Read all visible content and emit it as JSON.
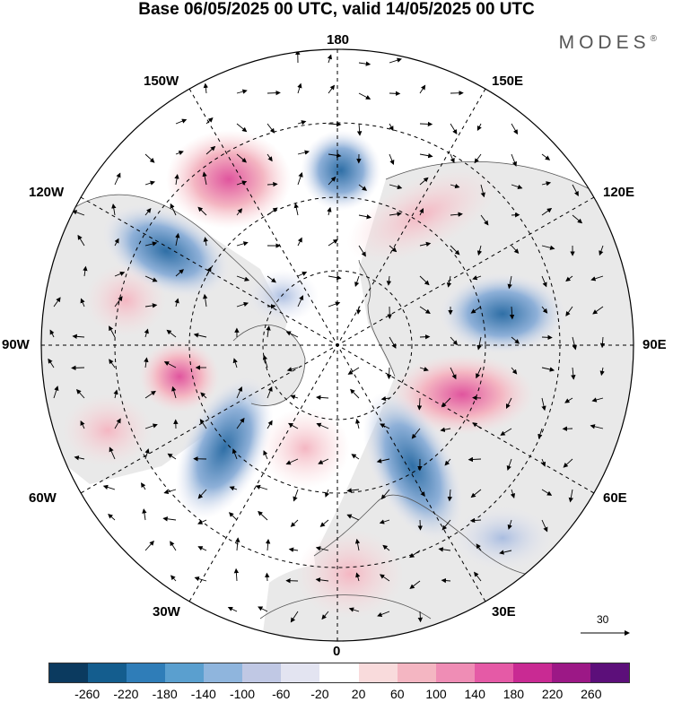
{
  "title": "Base 06/05/2025 00 UTC, valid 14/05/2025 00 UTC",
  "brand": "MODES",
  "brand_mark": "®",
  "longitude_labels": {
    "top": "180",
    "top_left": "150W",
    "top_right": "150E",
    "upper_left": "120W",
    "upper_right": "120E",
    "left": "90W",
    "right": "90E",
    "lower_left": "60W",
    "lower_right": "60E",
    "bottom_left": "30W",
    "bottom_right": "30E",
    "bottom": "0"
  },
  "vector_reference": "30",
  "colorbar": {
    "colors": [
      "#0b3a5f",
      "#145d8e",
      "#2f7db8",
      "#5a9fcf",
      "#8fb5dd",
      "#c0c8e4",
      "#e3e4f1",
      "#ffffff",
      "#f9dbdc",
      "#f4b6c2",
      "#ef8db5",
      "#e55aa6",
      "#c92a93",
      "#9c1886",
      "#5c0f7a"
    ],
    "tick_labels": [
      "-260",
      "-220",
      "-180",
      "-140",
      "-100",
      "-60",
      "-20",
      "20",
      "60",
      "100",
      "140",
      "180",
      "220",
      "260"
    ]
  },
  "map_style": {
    "ocean_fill": "#ffffff",
    "land_fill": "#e9e9e9",
    "positive_anomaly": "#f0a0bd",
    "strong_positive": "#e0559e",
    "negative_anomaly": "#8eb0d8",
    "strong_negative": "#2f6fa6"
  }
}
